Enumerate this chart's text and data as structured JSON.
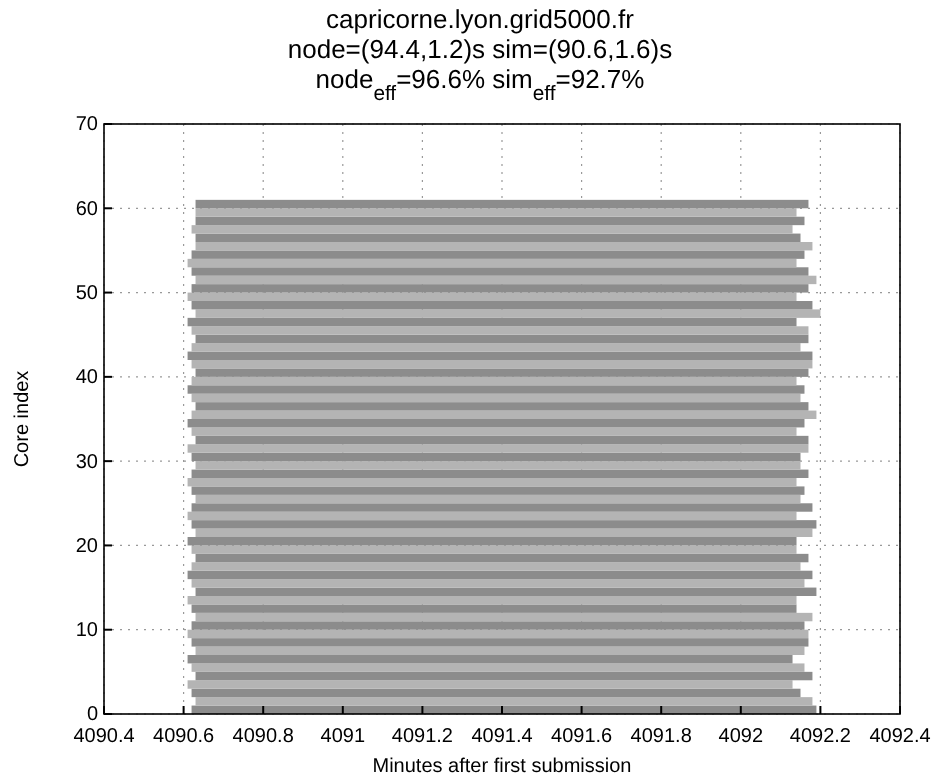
{
  "chart_data": {
    "type": "bar",
    "orientation": "horizontal",
    "title": "capricorne.lyon.grid5000.fr",
    "subtitle": "node=(94.4,1.2)s sim=(90.6,1.6)s\nnode$_{eff}$=96.6% sim$_{eff}$=92.7%",
    "xlabel": "Minutes after first submission",
    "ylabel": "Core index",
    "x": [
      0,
      1,
      2,
      3,
      4,
      5,
      6,
      7,
      8,
      9,
      10,
      11,
      12,
      13,
      14,
      15,
      16,
      17,
      18,
      19,
      20,
      21,
      22,
      23,
      24,
      25,
      26,
      27,
      28,
      29,
      30,
      31,
      32,
      33,
      34,
      35,
      36,
      37,
      38,
      39,
      40,
      41,
      42,
      43,
      44,
      45,
      46,
      47,
      48,
      49,
      50,
      51,
      52,
      53,
      54,
      55,
      56,
      57,
      58,
      59,
      60
    ],
    "base": [
      4090.62,
      4090.63,
      4090.62,
      4090.61,
      4090.63,
      4090.62,
      4090.61,
      4090.63,
      4090.62,
      4090.61,
      4090.62,
      4090.63,
      4090.62,
      4090.61,
      4090.63,
      4090.62,
      4090.61,
      4090.62,
      4090.63,
      4090.62,
      4090.61,
      4090.63,
      4090.62,
      4090.61,
      4090.62,
      4090.63,
      4090.62,
      4090.61,
      4090.62,
      4090.63,
      4090.62,
      4090.61,
      4090.63,
      4090.62,
      4090.61,
      4090.62,
      4090.63,
      4090.62,
      4090.61,
      4090.62,
      4090.63,
      4090.62,
      4090.61,
      4090.62,
      4090.63,
      4090.62,
      4090.61,
      4090.63,
      4090.62,
      4090.61,
      4090.62,
      4090.63,
      4090.62,
      4090.61,
      4090.62,
      4090.63,
      4090.63,
      4090.62,
      4090.63,
      4090.63,
      4090.63
    ],
    "values": [
      1.57,
      1.55,
      1.53,
      1.52,
      1.55,
      1.54,
      1.52,
      1.53,
      1.55,
      1.56,
      1.54,
      1.55,
      1.52,
      1.53,
      1.56,
      1.54,
      1.57,
      1.53,
      1.54,
      1.52,
      1.53,
      1.55,
      1.57,
      1.53,
      1.56,
      1.52,
      1.54,
      1.53,
      1.55,
      1.52,
      1.53,
      1.56,
      1.54,
      1.52,
      1.55,
      1.57,
      1.54,
      1.53,
      1.55,
      1.52,
      1.54,
      1.56,
      1.57,
      1.53,
      1.54,
      1.55,
      1.53,
      1.57,
      1.56,
      1.53,
      1.55,
      1.56,
      1.55,
      1.53,
      1.54,
      1.55,
      1.52,
      1.51,
      1.53,
      1.51,
      1.54
    ],
    "colors": [
      "#8c8c8c",
      "#b4b4b4",
      "#8c8c8c",
      "#b4b4b4",
      "#8c8c8c",
      "#b4b4b4",
      "#8c8c8c",
      "#b4b4b4",
      "#8c8c8c",
      "#b4b4b4",
      "#8c8c8c",
      "#b4b4b4",
      "#8c8c8c",
      "#b4b4b4",
      "#8c8c8c",
      "#b4b4b4",
      "#8c8c8c",
      "#b4b4b4",
      "#8c8c8c",
      "#b4b4b4",
      "#8c8c8c",
      "#b4b4b4",
      "#8c8c8c",
      "#b4b4b4",
      "#8c8c8c",
      "#b4b4b4",
      "#8c8c8c",
      "#b4b4b4",
      "#8c8c8c",
      "#b4b4b4",
      "#8c8c8c",
      "#b4b4b4",
      "#8c8c8c",
      "#b4b4b4",
      "#8c8c8c",
      "#b4b4b4",
      "#8c8c8c",
      "#b4b4b4",
      "#8c8c8c",
      "#b4b4b4",
      "#8c8c8c",
      "#b4b4b4",
      "#8c8c8c",
      "#b4b4b4",
      "#8c8c8c",
      "#b4b4b4",
      "#8c8c8c",
      "#b4b4b4",
      "#8c8c8c",
      "#b4b4b4",
      "#8c8c8c",
      "#b4b4b4",
      "#8c8c8c",
      "#b4b4b4",
      "#8c8c8c",
      "#b4b4b4",
      "#8c8c8c",
      "#b4b4b4",
      "#8c8c8c",
      "#b4b4b4",
      "#8c8c8c"
    ],
    "xlim": [
      4090.4,
      4092.4
    ],
    "xticks": [
      4090.4,
      4090.6,
      4090.8,
      4091,
      4091.2,
      4091.4,
      4091.6,
      4091.8,
      4092,
      4092.2,
      4092.4
    ],
    "ylim": [
      0,
      70
    ],
    "yticks": [
      0,
      10,
      20,
      30,
      40,
      50,
      60,
      70
    ],
    "grid": true,
    "line_style": "dotted"
  }
}
